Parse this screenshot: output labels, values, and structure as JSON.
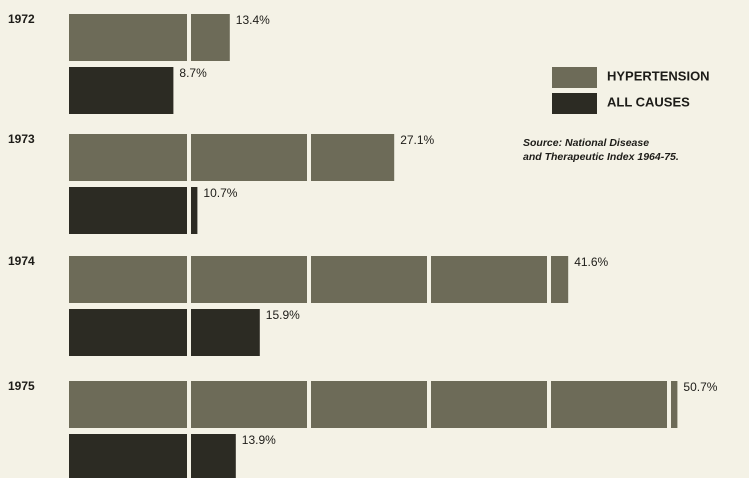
{
  "chart_data": {
    "type": "bar",
    "orientation": "horizontal",
    "categories": [
      "1972",
      "1973",
      "1974",
      "1975"
    ],
    "series": [
      {
        "name": "HYPERTENSION",
        "color": "#6d6b58",
        "values": [
          13.4,
          27.1,
          41.6,
          50.7
        ],
        "value_labels": [
          "13.4%",
          "27.1%",
          "41.6%",
          "50.7%"
        ]
      },
      {
        "name": "ALL CAUSES",
        "color": "#2c2b23",
        "values": [
          8.7,
          10.7,
          15.9,
          13.9
        ],
        "value_labels": [
          "8.7%",
          "10.7%",
          "15.9%",
          "13.9%"
        ]
      }
    ],
    "annotations": [
      "Source: National Disease",
      "and Therapeutic Index 1964-75."
    ]
  }
}
